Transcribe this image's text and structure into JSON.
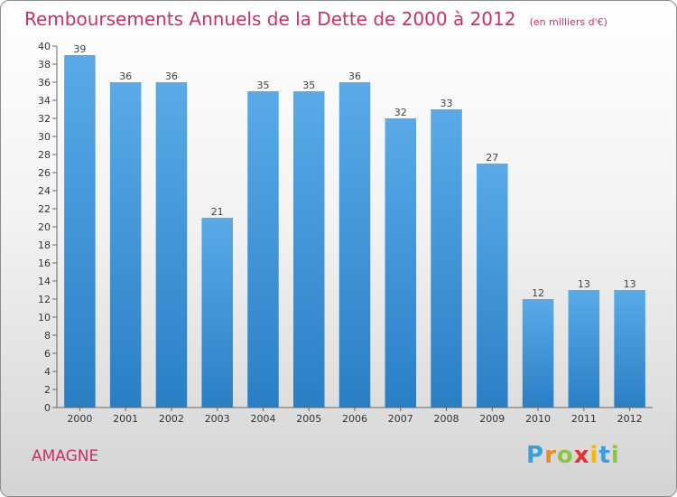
{
  "chart_data": {
    "type": "bar",
    "title": "Remboursements Annuels de la Dette de 2000 à 2012",
    "subtitle": "(en milliers d'€)",
    "categories": [
      "2000",
      "2001",
      "2002",
      "2003",
      "2004",
      "2005",
      "2006",
      "2007",
      "2008",
      "2009",
      "2010",
      "2011",
      "2012"
    ],
    "values": [
      39,
      36,
      36,
      21,
      35,
      35,
      36,
      32,
      33,
      27,
      12,
      13,
      13
    ],
    "ylim": [
      0,
      40
    ],
    "ytick_step": 2,
    "grid": false,
    "colors": {
      "bar_top": "#5aaae8",
      "bar_bottom": "#2a7fc4",
      "accent": "#c8306a"
    }
  },
  "commune": "AMAGNE",
  "brand": {
    "letters": [
      "P",
      "r",
      "o",
      "x",
      "i",
      "t",
      "i"
    ],
    "colors": [
      "#3a9fd8",
      "#f08a1c",
      "#8cc63f",
      "#e5322d",
      "#f5b800",
      "#3a9fd8",
      "#8cc63f"
    ]
  }
}
